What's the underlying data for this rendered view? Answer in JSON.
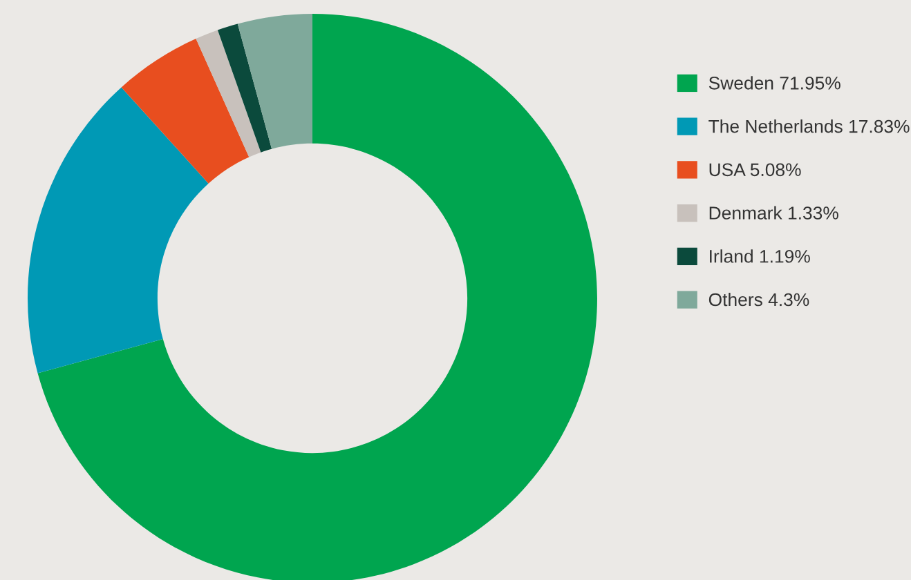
{
  "chart_data": {
    "type": "donut",
    "categories": [
      "Sweden",
      "The Netherlands",
      "USA",
      "Denmark",
      "Irland",
      "Others"
    ],
    "values": [
      71.95,
      17.83,
      5.08,
      1.33,
      1.19,
      4.3
    ],
    "value_labels": [
      "71.95%",
      "17.83%",
      "5.08%",
      "1.33%",
      "1.19%",
      "4.3%"
    ],
    "colors": [
      "#00a54f",
      "#0099b5",
      "#e84e1f",
      "#c8c1bc",
      "#0b4a3c",
      "#7fa99b"
    ],
    "legend": "right"
  }
}
